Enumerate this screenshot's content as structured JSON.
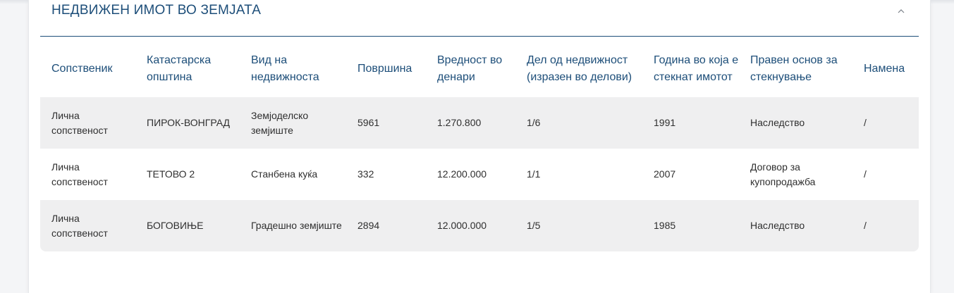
{
  "section": {
    "title": "НЕДВИЖЕН ИМОТ ВО ЗЕМЈАТА",
    "collapse_icon": "chevron-up-icon"
  },
  "table": {
    "headers": [
      "Сопственик",
      "Катастарска општина",
      "Вид на недвижноста",
      "Површина",
      "Вредност во денари",
      "Дел од недвижност (изразен во делови)",
      "Година во која е стекнат имотот",
      "Правен основ за стекнување",
      "Намена"
    ],
    "rows": [
      [
        "Лична сопственост",
        "ПИРОК-ВОНГРАД",
        "Земјоделско земјиште",
        "5961",
        "1.270.800",
        "1/6",
        "1991",
        "Наследство",
        "/"
      ],
      [
        "Лична сопственост",
        "ТЕТОВО 2",
        "Станбена куќа",
        "332",
        "12.200.000",
        "1/1",
        "2007",
        "Договор за купопродажба",
        "/"
      ],
      [
        "Лична сопственост",
        "БОГОВИЊЕ",
        "Градешно земјиште",
        "2894",
        "12.000.000",
        "1/5",
        "1985",
        "Наследство",
        "/"
      ]
    ]
  }
}
